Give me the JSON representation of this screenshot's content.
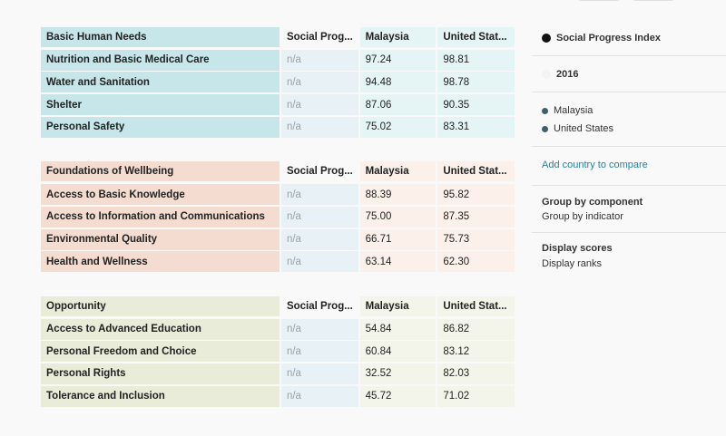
{
  "columns": {
    "social_progress": "Social Prog...",
    "malaysia": "Malaysia",
    "united_states": "United Stat..."
  },
  "sections": [
    {
      "title": "Basic Human Needs",
      "rows": [
        {
          "name": "Nutrition and Basic Medical Care",
          "spi": "n/a",
          "malaysia": "97.24",
          "us": "98.81"
        },
        {
          "name": "Water and Sanitation",
          "spi": "n/a",
          "malaysia": "94.48",
          "us": "98.78"
        },
        {
          "name": "Shelter",
          "spi": "n/a",
          "malaysia": "87.06",
          "us": "90.35"
        },
        {
          "name": "Personal Safety",
          "spi": "n/a",
          "malaysia": "75.02",
          "us": "83.31"
        }
      ]
    },
    {
      "title": "Foundations of Wellbeing",
      "rows": [
        {
          "name": "Access to Basic Knowledge",
          "spi": "n/a",
          "malaysia": "88.39",
          "us": "95.82"
        },
        {
          "name": "Access to Information and Communications",
          "spi": "n/a",
          "malaysia": "75.00",
          "us": "87.35"
        },
        {
          "name": "Environmental Quality",
          "spi": "n/a",
          "malaysia": "66.71",
          "us": "75.73"
        },
        {
          "name": "Health and Wellness",
          "spi": "n/a",
          "malaysia": "63.14",
          "us": "62.30"
        }
      ]
    },
    {
      "title": "Opportunity",
      "rows": [
        {
          "name": "Access to Advanced Education",
          "spi": "n/a",
          "malaysia": "54.84",
          "us": "86.82"
        },
        {
          "name": "Personal Freedom and Choice",
          "spi": "n/a",
          "malaysia": "60.84",
          "us": "83.12"
        },
        {
          "name": "Personal Rights",
          "spi": "n/a",
          "malaysia": "32.52",
          "us": "82.03"
        },
        {
          "name": "Tolerance and Inclusion",
          "spi": "n/a",
          "malaysia": "45.72",
          "us": "71.02"
        }
      ]
    }
  ],
  "panel": {
    "index_label": "Social Progress Index",
    "year": "2016",
    "countries": [
      "Malaysia",
      "United States"
    ],
    "add_country": "Add country to compare",
    "group_by_component": "Group by component",
    "group_by_indicator": "Group by indicator",
    "display_scores": "Display scores",
    "display_ranks": "Display ranks"
  },
  "colors": {
    "basic_human_needs": "#c6e6ea",
    "foundations_of_wellbeing": "#f4ddd0",
    "opportunity": "#e9ecd9",
    "link": "#2a7f9a",
    "country_dot": "#3f5f6a"
  }
}
